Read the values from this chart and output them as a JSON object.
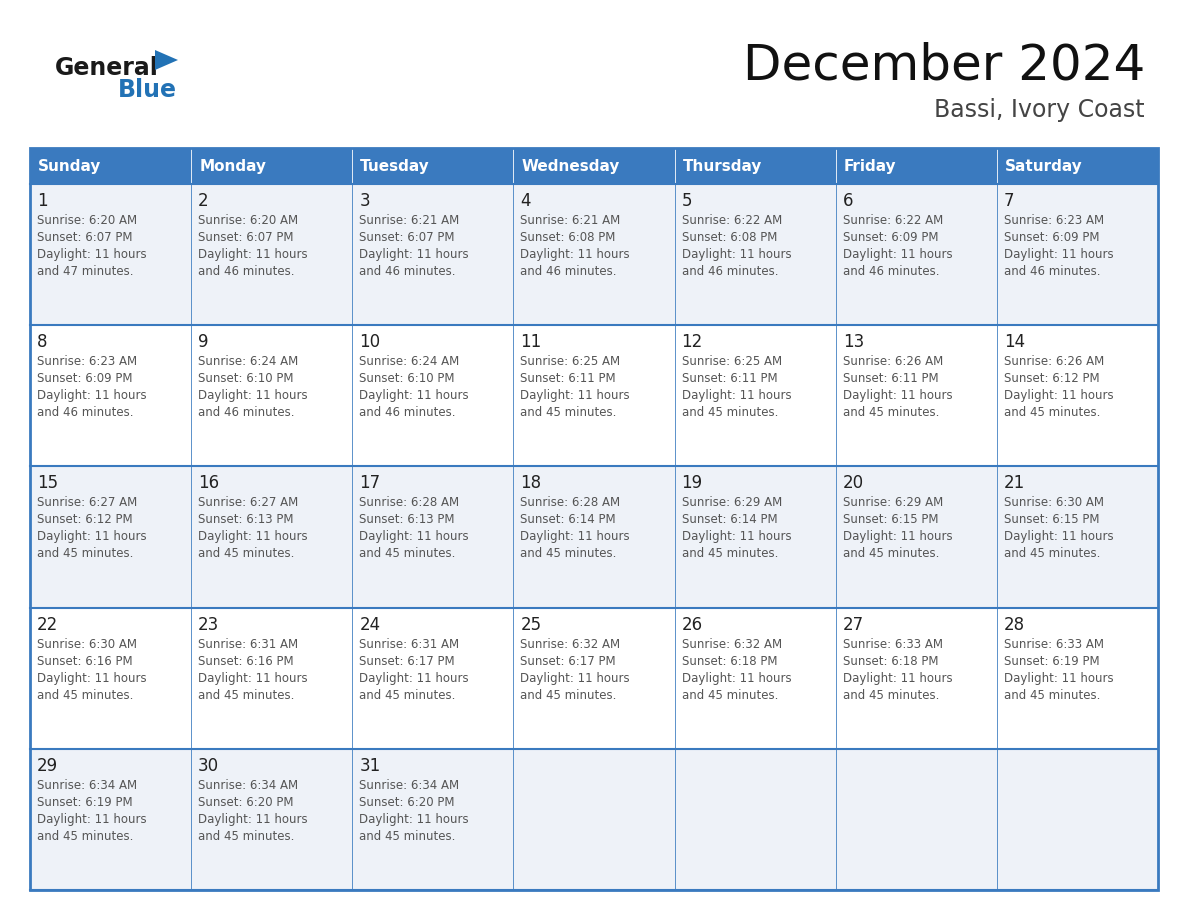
{
  "title": "December 2024",
  "subtitle": "Bassi, Ivory Coast",
  "days_of_week": [
    "Sunday",
    "Monday",
    "Tuesday",
    "Wednesday",
    "Thursday",
    "Friday",
    "Saturday"
  ],
  "header_bg": "#3a7abf",
  "header_text": "#ffffff",
  "row_bg_odd": "#eef2f8",
  "row_bg_even": "#ffffff",
  "border_color": "#3a7abf",
  "day_num_color": "#222222",
  "cell_text_color": "#555555",
  "title_color": "#111111",
  "subtitle_color": "#444444",
  "logo_general_color": "#1a1a1a",
  "logo_blue_color": "#2272b5",
  "calendar_data": [
    [
      {
        "day": 1,
        "sunrise": "6:20 AM",
        "sunset": "6:07 PM",
        "daylight_hours": 11,
        "daylight_minutes": 47
      },
      {
        "day": 2,
        "sunrise": "6:20 AM",
        "sunset": "6:07 PM",
        "daylight_hours": 11,
        "daylight_minutes": 46
      },
      {
        "day": 3,
        "sunrise": "6:21 AM",
        "sunset": "6:07 PM",
        "daylight_hours": 11,
        "daylight_minutes": 46
      },
      {
        "day": 4,
        "sunrise": "6:21 AM",
        "sunset": "6:08 PM",
        "daylight_hours": 11,
        "daylight_minutes": 46
      },
      {
        "day": 5,
        "sunrise": "6:22 AM",
        "sunset": "6:08 PM",
        "daylight_hours": 11,
        "daylight_minutes": 46
      },
      {
        "day": 6,
        "sunrise": "6:22 AM",
        "sunset": "6:09 PM",
        "daylight_hours": 11,
        "daylight_minutes": 46
      },
      {
        "day": 7,
        "sunrise": "6:23 AM",
        "sunset": "6:09 PM",
        "daylight_hours": 11,
        "daylight_minutes": 46
      }
    ],
    [
      {
        "day": 8,
        "sunrise": "6:23 AM",
        "sunset": "6:09 PM",
        "daylight_hours": 11,
        "daylight_minutes": 46
      },
      {
        "day": 9,
        "sunrise": "6:24 AM",
        "sunset": "6:10 PM",
        "daylight_hours": 11,
        "daylight_minutes": 46
      },
      {
        "day": 10,
        "sunrise": "6:24 AM",
        "sunset": "6:10 PM",
        "daylight_hours": 11,
        "daylight_minutes": 46
      },
      {
        "day": 11,
        "sunrise": "6:25 AM",
        "sunset": "6:11 PM",
        "daylight_hours": 11,
        "daylight_minutes": 45
      },
      {
        "day": 12,
        "sunrise": "6:25 AM",
        "sunset": "6:11 PM",
        "daylight_hours": 11,
        "daylight_minutes": 45
      },
      {
        "day": 13,
        "sunrise": "6:26 AM",
        "sunset": "6:11 PM",
        "daylight_hours": 11,
        "daylight_minutes": 45
      },
      {
        "day": 14,
        "sunrise": "6:26 AM",
        "sunset": "6:12 PM",
        "daylight_hours": 11,
        "daylight_minutes": 45
      }
    ],
    [
      {
        "day": 15,
        "sunrise": "6:27 AM",
        "sunset": "6:12 PM",
        "daylight_hours": 11,
        "daylight_minutes": 45
      },
      {
        "day": 16,
        "sunrise": "6:27 AM",
        "sunset": "6:13 PM",
        "daylight_hours": 11,
        "daylight_minutes": 45
      },
      {
        "day": 17,
        "sunrise": "6:28 AM",
        "sunset": "6:13 PM",
        "daylight_hours": 11,
        "daylight_minutes": 45
      },
      {
        "day": 18,
        "sunrise": "6:28 AM",
        "sunset": "6:14 PM",
        "daylight_hours": 11,
        "daylight_minutes": 45
      },
      {
        "day": 19,
        "sunrise": "6:29 AM",
        "sunset": "6:14 PM",
        "daylight_hours": 11,
        "daylight_minutes": 45
      },
      {
        "day": 20,
        "sunrise": "6:29 AM",
        "sunset": "6:15 PM",
        "daylight_hours": 11,
        "daylight_minutes": 45
      },
      {
        "day": 21,
        "sunrise": "6:30 AM",
        "sunset": "6:15 PM",
        "daylight_hours": 11,
        "daylight_minutes": 45
      }
    ],
    [
      {
        "day": 22,
        "sunrise": "6:30 AM",
        "sunset": "6:16 PM",
        "daylight_hours": 11,
        "daylight_minutes": 45
      },
      {
        "day": 23,
        "sunrise": "6:31 AM",
        "sunset": "6:16 PM",
        "daylight_hours": 11,
        "daylight_minutes": 45
      },
      {
        "day": 24,
        "sunrise": "6:31 AM",
        "sunset": "6:17 PM",
        "daylight_hours": 11,
        "daylight_minutes": 45
      },
      {
        "day": 25,
        "sunrise": "6:32 AM",
        "sunset": "6:17 PM",
        "daylight_hours": 11,
        "daylight_minutes": 45
      },
      {
        "day": 26,
        "sunrise": "6:32 AM",
        "sunset": "6:18 PM",
        "daylight_hours": 11,
        "daylight_minutes": 45
      },
      {
        "day": 27,
        "sunrise": "6:33 AM",
        "sunset": "6:18 PM",
        "daylight_hours": 11,
        "daylight_minutes": 45
      },
      {
        "day": 28,
        "sunrise": "6:33 AM",
        "sunset": "6:19 PM",
        "daylight_hours": 11,
        "daylight_minutes": 45
      }
    ],
    [
      {
        "day": 29,
        "sunrise": "6:34 AM",
        "sunset": "6:19 PM",
        "daylight_hours": 11,
        "daylight_minutes": 45
      },
      {
        "day": 30,
        "sunrise": "6:34 AM",
        "sunset": "6:20 PM",
        "daylight_hours": 11,
        "daylight_minutes": 45
      },
      {
        "day": 31,
        "sunrise": "6:34 AM",
        "sunset": "6:20 PM",
        "daylight_hours": 11,
        "daylight_minutes": 45
      },
      null,
      null,
      null,
      null
    ]
  ]
}
